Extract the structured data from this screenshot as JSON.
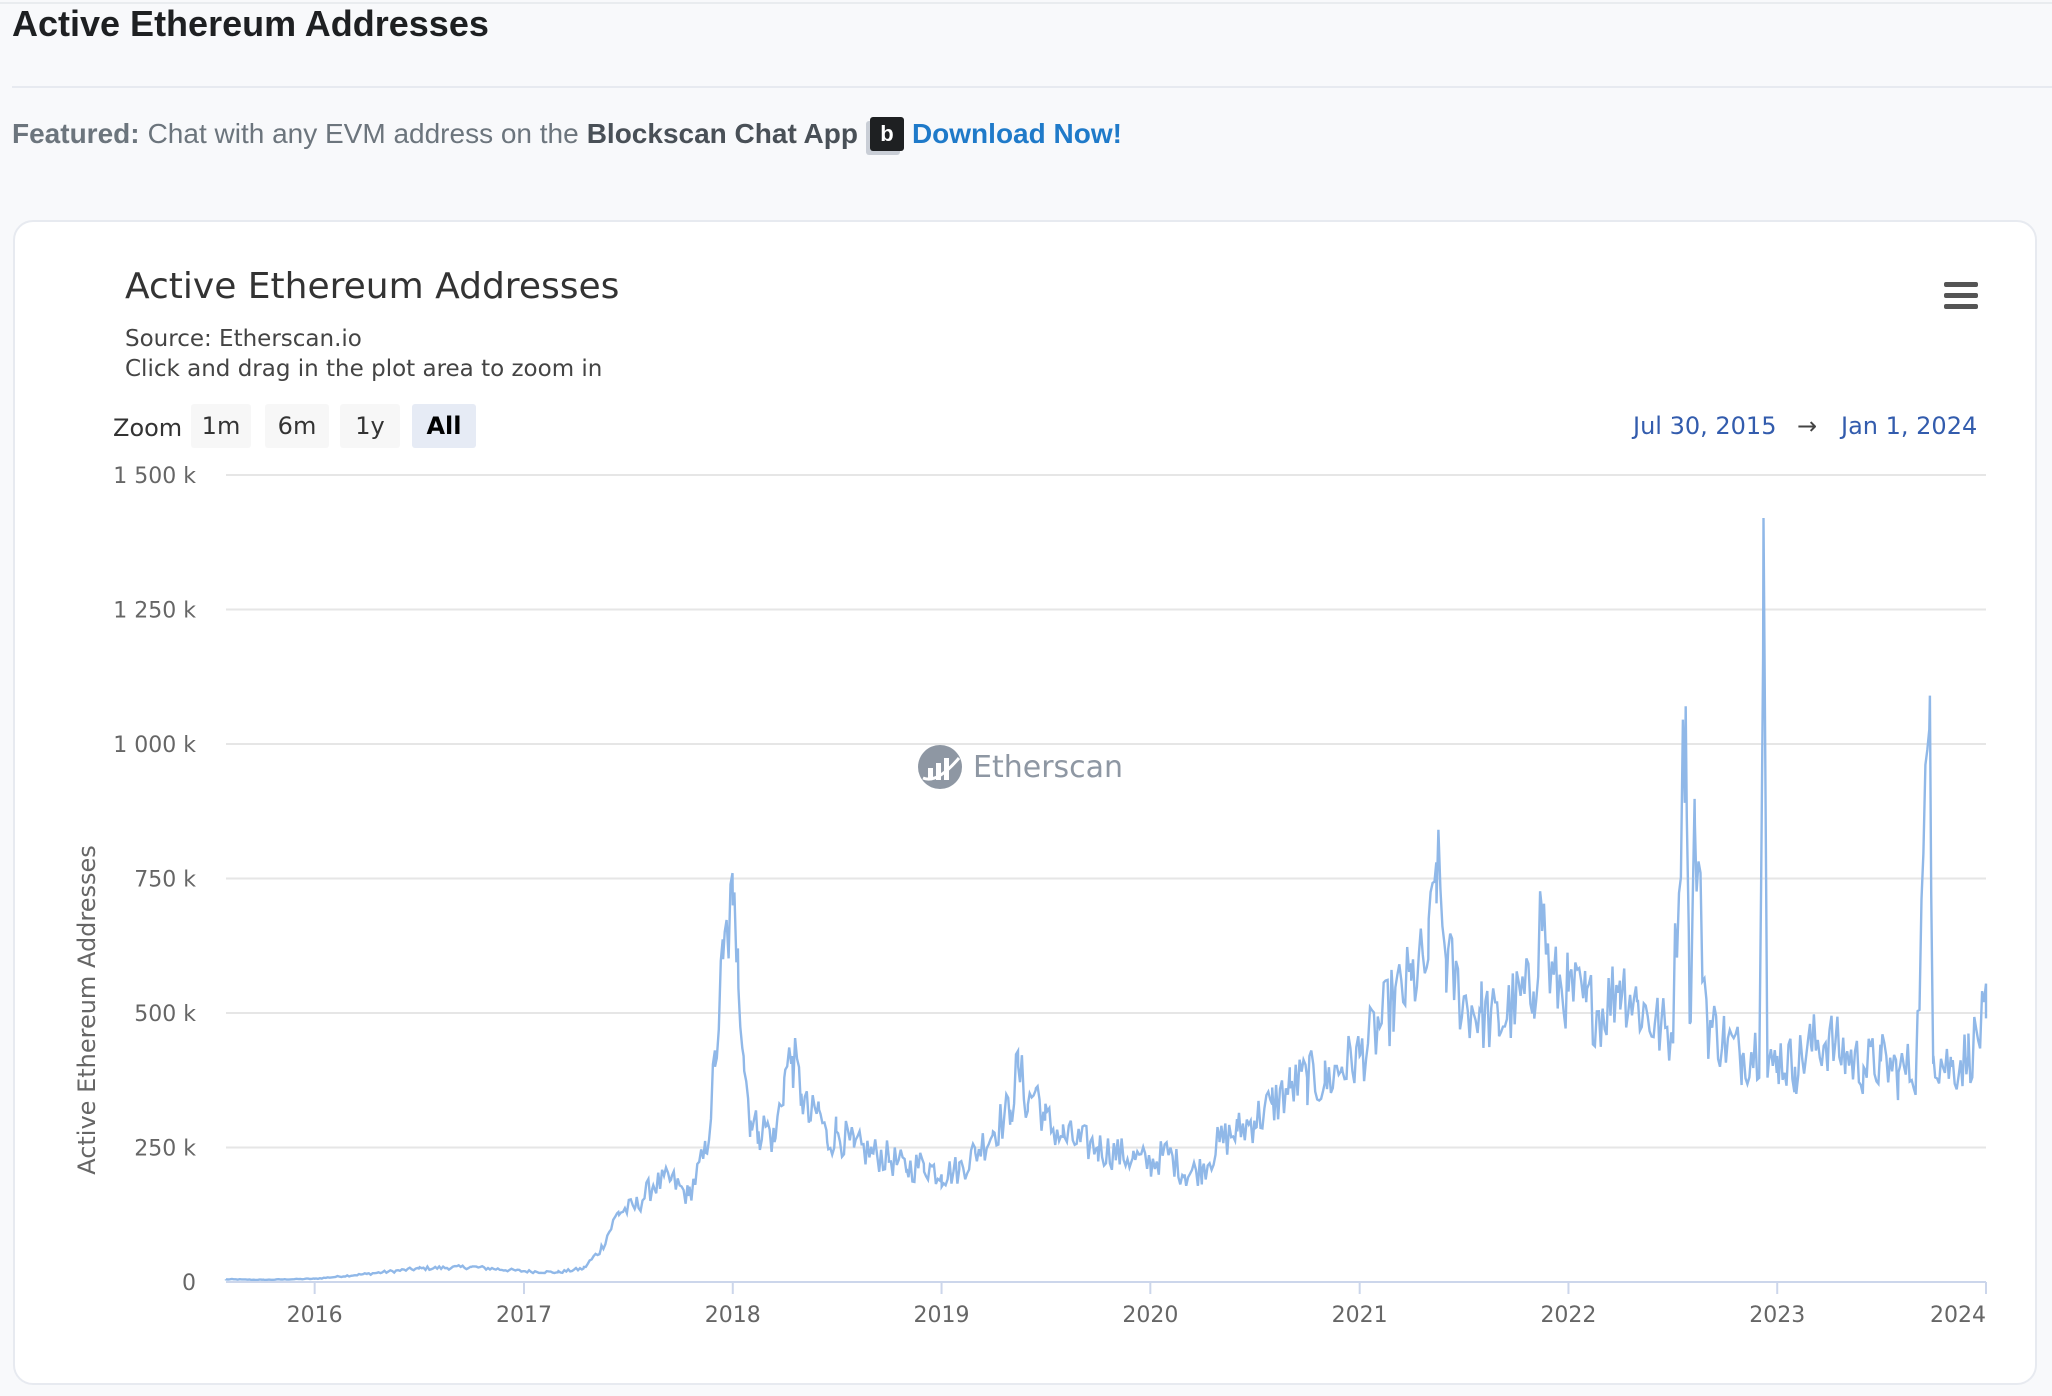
{
  "page": {
    "title": "Active Ethereum Addresses"
  },
  "featured": {
    "label": "Featured:",
    "text": "Chat with any EVM address on the",
    "app_name": "Blockscan Chat App",
    "badge": "b",
    "link": "Download Now!"
  },
  "chart": {
    "subtitle_source": "Source: Etherscan.io",
    "subtitle_hint": "Click and drag in the plot area to zoom in",
    "zoom_label": "Zoom",
    "zoom_buttons": [
      "1m",
      "6m",
      "1y",
      "All"
    ],
    "zoom_selected": "All",
    "range_from": "Jul 30, 2015",
    "range_arrow": "→",
    "range_to": "Jan 1, 2024",
    "watermark": "Etherscan",
    "menu_icon": "hamburger-menu-icon",
    "line_color": "#90b8e8"
  },
  "chart_data": {
    "type": "line",
    "title": "Active Ethereum Addresses",
    "subtitle": "Source: Etherscan.io",
    "xlabel": "",
    "ylabel": "Active Ethereum Addresses",
    "x_range": [
      "2015-07-30",
      "2024-01-01"
    ],
    "ylim": [
      0,
      1500000
    ],
    "y_ticks": [
      0,
      250000,
      500000,
      750000,
      1000000,
      1250000,
      1500000
    ],
    "y_tick_labels": [
      "0",
      "250 k",
      "500 k",
      "750 k",
      "1 000 k",
      "1 250 k",
      "1 500 k"
    ],
    "x_tick_labels": [
      "2016",
      "2017",
      "2018",
      "2019",
      "2020",
      "2021",
      "2022",
      "2023",
      "2024"
    ],
    "grid": true,
    "legend": "none",
    "series": [
      {
        "x": [
          "2015-07-30",
          "2015-10-01",
          "2016-01-01",
          "2016-04-01",
          "2016-07-01",
          "2016-10-01",
          "2017-01-01",
          "2017-03-01",
          "2017-04-15",
          "2017-05-15",
          "2017-06-15",
          "2017-07-15",
          "2017-08-15",
          "2017-09-15",
          "2017-10-15",
          "2017-11-15",
          "2017-12-01",
          "2017-12-15",
          "2018-01-01",
          "2018-01-10",
          "2018-01-20",
          "2018-02-01",
          "2018-02-15",
          "2018-03-01",
          "2018-03-15",
          "2018-04-01",
          "2018-04-15",
          "2018-05-01",
          "2018-05-15",
          "2018-06-01",
          "2018-06-15",
          "2018-07-01",
          "2018-08-01",
          "2018-09-01",
          "2018-10-01",
          "2018-11-01",
          "2018-12-01",
          "2019-01-01",
          "2019-02-01",
          "2019-03-01",
          "2019-04-01",
          "2019-05-01",
          "2019-05-15",
          "2019-06-01",
          "2019-06-15",
          "2019-07-01",
          "2019-08-01",
          "2019-09-01",
          "2019-10-01",
          "2019-11-01",
          "2019-12-01",
          "2020-01-01",
          "2020-02-01",
          "2020-03-01",
          "2020-04-01",
          "2020-05-01",
          "2020-06-01",
          "2020-07-01",
          "2020-08-01",
          "2020-09-01",
          "2020-10-01",
          "2020-11-01",
          "2020-12-01",
          "2021-01-01",
          "2021-02-01",
          "2021-03-01",
          "2021-04-01",
          "2021-05-01",
          "2021-05-15",
          "2021-06-01",
          "2021-07-01",
          "2021-08-01",
          "2021-09-01",
          "2021-10-01",
          "2021-11-01",
          "2021-11-15",
          "2021-12-01",
          "2022-01-01",
          "2022-02-01",
          "2022-03-01",
          "2022-04-01",
          "2022-05-01",
          "2022-06-01",
          "2022-07-01",
          "2022-07-25",
          "2022-08-01",
          "2022-08-10",
          "2022-09-01",
          "2022-10-01",
          "2022-11-01",
          "2022-12-01",
          "2022-12-08",
          "2022-12-15",
          "2023-01-01",
          "2023-02-01",
          "2023-03-01",
          "2023-04-01",
          "2023-05-01",
          "2023-06-01",
          "2023-07-01",
          "2023-08-01",
          "2023-09-01",
          "2023-09-25",
          "2023-10-01",
          "2023-11-01",
          "2023-12-01",
          "2024-01-01"
        ],
        "values": [
          5000,
          4000,
          6000,
          15000,
          25000,
          28000,
          20000,
          18000,
          25000,
          60000,
          130000,
          140000,
          180000,
          190000,
          160000,
          240000,
          400000,
          600000,
          700000,
          620000,
          420000,
          300000,
          280000,
          290000,
          260000,
          380000,
          420000,
          350000,
          300000,
          320000,
          260000,
          280000,
          250000,
          240000,
          230000,
          210000,
          220000,
          200000,
          210000,
          240000,
          280000,
          320000,
          400000,
          330000,
          360000,
          300000,
          270000,
          260000,
          250000,
          240000,
          230000,
          220000,
          240000,
          200000,
          210000,
          260000,
          280000,
          300000,
          330000,
          360000,
          380000,
          370000,
          400000,
          420000,
          470000,
          520000,
          560000,
          600000,
          780000,
          600000,
          520000,
          500000,
          480000,
          520000,
          540000,
          700000,
          560000,
          540000,
          520000,
          500000,
          560000,
          520000,
          480000,
          460000,
          1070000,
          480000,
          850000,
          480000,
          450000,
          420000,
          440000,
          1420000,
          380000,
          420000,
          400000,
          440000,
          450000,
          420000,
          400000,
          410000,
          390000,
          400000,
          1090000,
          420000,
          400000,
          420000,
          490000
        ],
        "name": ""
      }
    ]
  }
}
